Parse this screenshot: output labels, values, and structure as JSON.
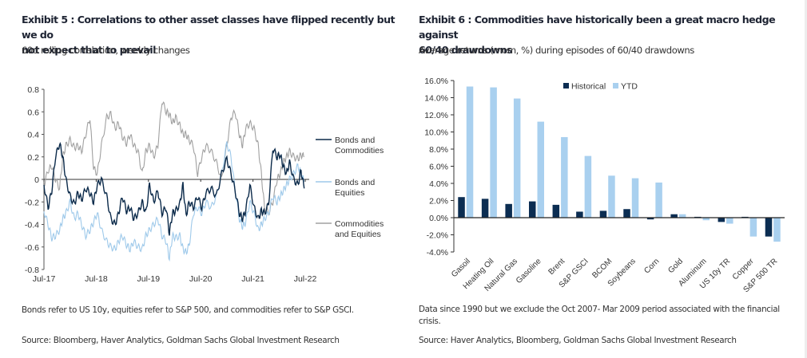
{
  "left": {
    "title_line1": "Exhibit 5 : Correlations to other asset classes have flipped recently but we do",
    "title_line2": "not expect that to prevail",
    "subtitle": "60d rolling correlation, weekly changes",
    "note": "Bonds refer to US 10y, equities refer to S&P 500, and commodities refer to S&P GSCI.",
    "source": "Source: Bloomberg, Haver Analytics, Goldman Sachs Global Investment Research"
  },
  "right": {
    "title_line1": "Exhibit 6 : Commodities have historically been a great macro hedge against",
    "title_line2": "60/40 drawdowns",
    "subtitle": "Average returns (mom, %) during episodes of 60/40 drawdowns",
    "note_line1": "Data since 1990 but we exclude the Oct 2007- Mar 2009 period associated with the financial",
    "note_line2": "crisis.",
    "source": "Source: Haver Analytics, Bloomberg, Goldman Sachs Global Investment Research"
  },
  "chart_data": [
    {
      "type": "line",
      "title": "60d rolling correlation, weekly changes",
      "xlabel": "",
      "ylabel": "",
      "ylim": [
        -0.8,
        0.8
      ],
      "yticks": [
        "0.8",
        "0.6",
        "0.4",
        "0.2",
        "0",
        "-0.2",
        "-0.4",
        "-0.6",
        "-0.8"
      ],
      "ytick_values": [
        0.8,
        0.6,
        0.4,
        0.2,
        0,
        -0.2,
        -0.4,
        -0.6,
        -0.8
      ],
      "xticks": [
        "Jul-17",
        "Jul-18",
        "Jul-19",
        "Jul-20",
        "Jul-21",
        "Jul-22"
      ],
      "xlim": [
        2017.5,
        2022.5
      ],
      "legend": "right",
      "series": [
        {
          "name": "Bonds and Commodities",
          "label_lines": [
            "Bonds and",
            "Commodities"
          ],
          "color": "#0b2a4a",
          "x": [
            2017.5,
            2017.58,
            2017.65,
            2017.72,
            2017.8,
            2017.86,
            2017.92,
            2018.0,
            2018.08,
            2018.15,
            2018.22,
            2018.3,
            2018.38,
            2018.45,
            2018.52,
            2018.6,
            2018.7,
            2018.78,
            2018.86,
            2018.93,
            2019.0,
            2019.08,
            2019.15,
            2019.22,
            2019.3,
            2019.38,
            2019.45,
            2019.52,
            2019.6,
            2019.68,
            2019.76,
            2019.84,
            2019.9,
            2019.96,
            2020.02,
            2020.1,
            2020.16,
            2020.22,
            2020.28,
            2020.36,
            2020.44,
            2020.52,
            2020.6,
            2020.7,
            2020.8,
            2020.9,
            2021.0,
            2021.08,
            2021.16,
            2021.24,
            2021.3,
            2021.36,
            2021.44,
            2021.52,
            2021.6,
            2021.66,
            2021.72,
            2021.8,
            2021.88,
            2021.96,
            2022.02,
            2022.08,
            2022.14,
            2022.2,
            2022.28,
            2022.36,
            2022.42,
            2022.48
          ],
          "y": [
            -0.05,
            -0.25,
            -0.1,
            0.2,
            0.32,
            0.2,
            0.0,
            -0.15,
            -0.22,
            -0.12,
            -0.18,
            -0.08,
            -0.12,
            -0.2,
            -0.05,
            0.0,
            -0.15,
            -0.35,
            -0.4,
            -0.3,
            -0.15,
            -0.28,
            -0.25,
            -0.35,
            -0.3,
            -0.2,
            -0.3,
            -0.05,
            -0.2,
            -0.1,
            -0.3,
            -0.25,
            -0.48,
            -0.3,
            -0.28,
            -0.22,
            -0.05,
            -0.32,
            -0.2,
            -0.25,
            -0.15,
            -0.25,
            -0.12,
            -0.08,
            -0.15,
            0.05,
            0.18,
            0.05,
            -0.1,
            -0.3,
            -0.35,
            -0.28,
            -0.05,
            -0.25,
            -0.35,
            -0.28,
            -0.3,
            -0.22,
            0.28,
            0.2,
            0.22,
            0.12,
            0.05,
            0.15,
            0.0,
            -0.05,
            0.08,
            -0.08
          ]
        },
        {
          "name": "Bonds and Equities",
          "label_lines": [
            "Bonds and",
            "Equities"
          ],
          "color": "#9ec9ea",
          "x": [
            2017.5,
            2017.58,
            2017.65,
            2017.72,
            2017.8,
            2017.86,
            2017.92,
            2018.0,
            2018.08,
            2018.15,
            2018.22,
            2018.3,
            2018.38,
            2018.45,
            2018.52,
            2018.6,
            2018.7,
            2018.78,
            2018.86,
            2018.93,
            2019.0,
            2019.08,
            2019.15,
            2019.22,
            2019.3,
            2019.38,
            2019.45,
            2019.52,
            2019.6,
            2019.68,
            2019.76,
            2019.84,
            2019.9,
            2019.96,
            2020.02,
            2020.1,
            2020.16,
            2020.22,
            2020.28,
            2020.36,
            2020.44,
            2020.52,
            2020.6,
            2020.7,
            2020.8,
            2020.9,
            2021.0,
            2021.08,
            2021.16,
            2021.24,
            2021.3,
            2021.36,
            2021.44,
            2021.52,
            2021.6,
            2021.66,
            2021.72,
            2021.8,
            2021.88,
            2021.96,
            2022.02,
            2022.08,
            2022.14,
            2022.2,
            2022.28,
            2022.36,
            2022.42,
            2022.48
          ],
          "y": [
            -0.28,
            -0.4,
            -0.52,
            -0.5,
            -0.45,
            -0.35,
            -0.3,
            -0.2,
            -0.35,
            -0.3,
            -0.4,
            -0.5,
            -0.45,
            -0.38,
            -0.3,
            -0.45,
            -0.55,
            -0.6,
            -0.62,
            -0.55,
            -0.5,
            -0.58,
            -0.62,
            -0.55,
            -0.6,
            -0.62,
            -0.5,
            -0.45,
            -0.4,
            -0.35,
            -0.5,
            -0.55,
            -0.7,
            -0.5,
            -0.52,
            -0.5,
            -0.62,
            -0.65,
            -0.58,
            -0.3,
            -0.25,
            -0.3,
            -0.2,
            -0.25,
            -0.15,
            0.05,
            0.32,
            0.2,
            -0.1,
            -0.35,
            -0.42,
            -0.38,
            -0.2,
            -0.3,
            -0.45,
            -0.4,
            -0.35,
            -0.3,
            -0.15,
            -0.2,
            -0.15,
            -0.1,
            -0.05,
            0.0,
            0.05,
            0.12,
            0.05,
            -0.02
          ]
        },
        {
          "name": "Commodities and Equities",
          "label_lines": [
            "Commodities",
            "and Equities"
          ],
          "color": "#a0a0a0",
          "x": [
            2017.5,
            2017.58,
            2017.65,
            2017.72,
            2017.8,
            2017.86,
            2017.92,
            2018.0,
            2018.08,
            2018.15,
            2018.22,
            2018.3,
            2018.38,
            2018.45,
            2018.52,
            2018.6,
            2018.7,
            2018.78,
            2018.86,
            2018.93,
            2019.0,
            2019.08,
            2019.15,
            2019.22,
            2019.3,
            2019.38,
            2019.45,
            2019.52,
            2019.6,
            2019.68,
            2019.76,
            2019.84,
            2019.9,
            2019.96,
            2020.02,
            2020.1,
            2020.16,
            2020.22,
            2020.28,
            2020.36,
            2020.44,
            2020.52,
            2020.6,
            2020.7,
            2020.8,
            2020.9,
            2021.0,
            2021.08,
            2021.16,
            2021.24,
            2021.3,
            2021.36,
            2021.44,
            2021.52,
            2021.6,
            2021.66,
            2021.72,
            2021.8,
            2021.88,
            2021.96,
            2022.02,
            2022.08,
            2022.14,
            2022.2,
            2022.28,
            2022.36,
            2022.42,
            2022.48
          ],
          "y": [
            -0.05,
            0.08,
            0.12,
            0.0,
            -0.08,
            0.2,
            0.3,
            0.35,
            0.28,
            0.3,
            0.25,
            0.4,
            0.55,
            0.1,
            0.05,
            0.3,
            0.55,
            0.58,
            0.45,
            0.5,
            0.38,
            0.32,
            0.4,
            0.3,
            0.25,
            0.05,
            0.25,
            0.3,
            0.2,
            0.3,
            0.7,
            0.6,
            0.58,
            0.5,
            0.55,
            0.48,
            0.4,
            0.4,
            0.35,
            0.3,
            0.05,
            0.2,
            0.3,
            0.25,
            0.15,
            0.0,
            0.3,
            0.55,
            0.6,
            0.4,
            0.3,
            0.45,
            0.5,
            0.45,
            0.3,
            0.05,
            -0.25,
            -0.3,
            -0.2,
            0.0,
            0.05,
            0.15,
            0.2,
            0.25,
            0.2,
            0.18,
            0.22,
            0.2
          ]
        }
      ]
    },
    {
      "type": "bar",
      "title": "Average returns (mom, %) during episodes of 60/40 drawdowns",
      "xlabel": "",
      "ylabel": "",
      "ylim": [
        -4,
        16
      ],
      "yticks": [
        "16.0%",
        "14.0%",
        "12.0%",
        "10.0%",
        "8.0%",
        "6.0%",
        "4.0%",
        "2.0%",
        "0.0%",
        "-2.0%",
        "-4.0%"
      ],
      "ytick_values": [
        16,
        14,
        12,
        10,
        8,
        6,
        4,
        2,
        0,
        -2,
        -4
      ],
      "legend": "top-right",
      "categories": [
        "Gasoil",
        "Heating Oil",
        "Natural Gas",
        "Gasoline",
        "Brent",
        "S&P GSCI",
        "BCOM",
        "Soybeans",
        "Corn",
        "Gold",
        "Aluminum",
        "US 10y TR",
        "Copper",
        "S&P 500 TR"
      ],
      "series": [
        {
          "name": "Historical",
          "color": "#0b2d52",
          "values": [
            2.4,
            2.2,
            1.6,
            1.9,
            1.5,
            0.7,
            0.8,
            1.0,
            -0.2,
            0.4,
            0.1,
            -0.5,
            0.1,
            -2.2
          ]
        },
        {
          "name": "YTD",
          "color": "#a9d0ef",
          "values": [
            15.3,
            15.2,
            13.9,
            11.2,
            9.4,
            7.2,
            4.9,
            4.6,
            4.1,
            0.4,
            -0.3,
            -0.7,
            -2.2,
            -2.8
          ]
        }
      ]
    }
  ]
}
